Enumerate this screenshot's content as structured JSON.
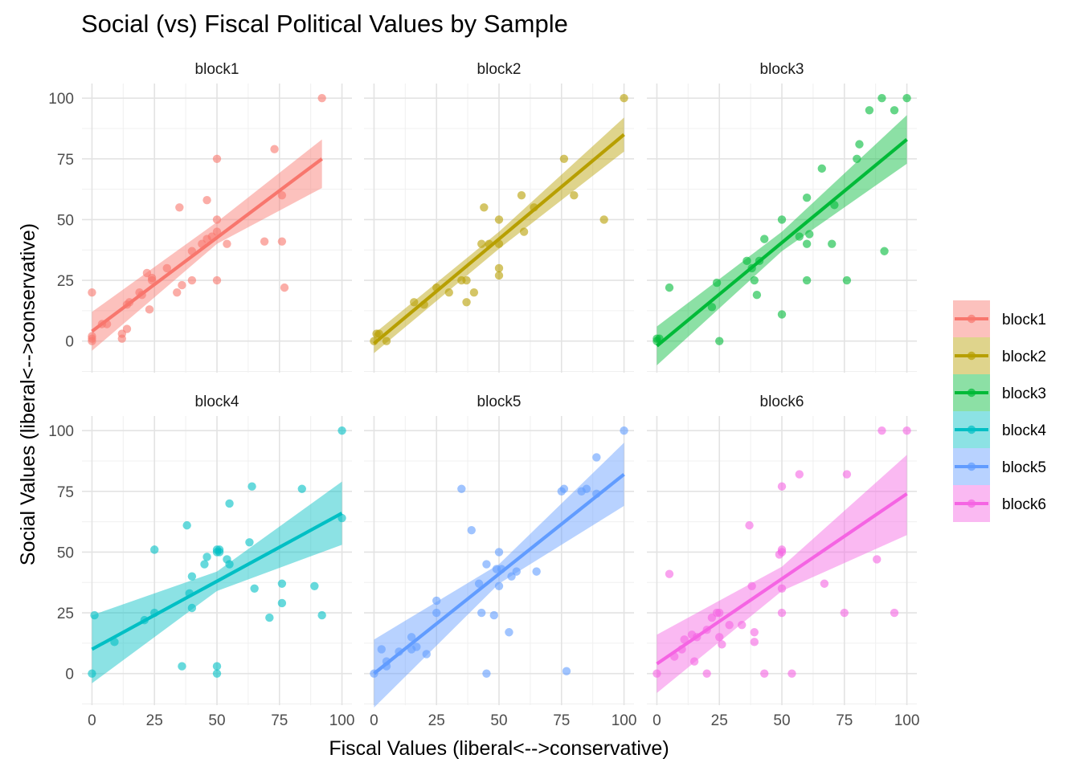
{
  "chart_data": {
    "type": "scatter",
    "title": "Social (vs) Fiscal Political Values by Sample",
    "xlabel": "Fiscal Values (liberal<-->conservative)",
    "ylabel": "Social Values (liberal<-->conservative)",
    "xlim": [
      -4,
      104
    ],
    "ylim": [
      -13,
      106
    ],
    "xticks": [
      0,
      25,
      50,
      75,
      100
    ],
    "yticks": [
      0,
      25,
      50,
      75,
      100
    ],
    "grid": true,
    "legend_position": "right",
    "overlay": "linear fit with confidence band",
    "facets": [
      {
        "name": "block1",
        "color": "#F8766D",
        "fit": {
          "x": [
            0,
            92
          ],
          "y": [
            4,
            75
          ]
        },
        "band": {
          "x": [
            0,
            50,
            92
          ],
          "upper": [
            12,
            49,
            83
          ],
          "lower": [
            -4,
            40,
            63
          ]
        },
        "points": [
          [
            0,
            20
          ],
          [
            0,
            2
          ],
          [
            0,
            1
          ],
          [
            0,
            0
          ],
          [
            4,
            7
          ],
          [
            6,
            7
          ],
          [
            12,
            3
          ],
          [
            12,
            1
          ],
          [
            14,
            5
          ],
          [
            14,
            15
          ],
          [
            15,
            16
          ],
          [
            19,
            20
          ],
          [
            20,
            19
          ],
          [
            22,
            28
          ],
          [
            23,
            13
          ],
          [
            24,
            26
          ],
          [
            24,
            25
          ],
          [
            30,
            30
          ],
          [
            34,
            20
          ],
          [
            35,
            55
          ],
          [
            36,
            23
          ],
          [
            40,
            37
          ],
          [
            40,
            25
          ],
          [
            44,
            40
          ],
          [
            46,
            58
          ],
          [
            46,
            42
          ],
          [
            48,
            43
          ],
          [
            50,
            50
          ],
          [
            50,
            45
          ],
          [
            50,
            75
          ],
          [
            50,
            25
          ],
          [
            54,
            40
          ],
          [
            69,
            41
          ],
          [
            73,
            79
          ],
          [
            76,
            60
          ],
          [
            76,
            41
          ],
          [
            77,
            22
          ],
          [
            92,
            100
          ]
        ]
      },
      {
        "name": "block2",
        "color": "#B79F00",
        "fit": {
          "x": [
            0,
            100
          ],
          "y": [
            -1,
            85
          ]
        },
        "band": {
          "x": [
            0,
            50,
            100
          ],
          "upper": [
            3,
            45,
            92
          ],
          "lower": [
            -5,
            38,
            78
          ]
        },
        "points": [
          [
            0,
            0
          ],
          [
            1,
            3
          ],
          [
            2,
            3
          ],
          [
            5,
            0
          ],
          [
            16,
            16
          ],
          [
            20,
            15
          ],
          [
            25,
            22
          ],
          [
            30,
            20
          ],
          [
            35,
            25
          ],
          [
            37,
            25
          ],
          [
            37,
            16
          ],
          [
            40,
            20
          ],
          [
            43,
            40
          ],
          [
            44,
            55
          ],
          [
            46,
            40
          ],
          [
            50,
            40
          ],
          [
            50,
            50
          ],
          [
            50,
            30
          ],
          [
            50,
            27
          ],
          [
            59,
            60
          ],
          [
            60,
            45
          ],
          [
            64,
            55
          ],
          [
            76,
            75
          ],
          [
            80,
            60
          ],
          [
            92,
            50
          ],
          [
            100,
            100
          ]
        ]
      },
      {
        "name": "block3",
        "color": "#00BA38",
        "fit": {
          "x": [
            0,
            100
          ],
          "y": [
            -2,
            83
          ]
        },
        "band": {
          "x": [
            0,
            50,
            100
          ],
          "upper": [
            6,
            45,
            93
          ],
          "lower": [
            -10,
            37,
            73
          ]
        },
        "points": [
          [
            0,
            0
          ],
          [
            0,
            1
          ],
          [
            1,
            1
          ],
          [
            5,
            22
          ],
          [
            22,
            14
          ],
          [
            24,
            24
          ],
          [
            25,
            0
          ],
          [
            36,
            33
          ],
          [
            38,
            30
          ],
          [
            39,
            25
          ],
          [
            40,
            19
          ],
          [
            41,
            33
          ],
          [
            43,
            42
          ],
          [
            50,
            50
          ],
          [
            50,
            11
          ],
          [
            57,
            43
          ],
          [
            60,
            25
          ],
          [
            60,
            40
          ],
          [
            60,
            59
          ],
          [
            61,
            44
          ],
          [
            66,
            71
          ],
          [
            70,
            40
          ],
          [
            71,
            56
          ],
          [
            76,
            25
          ],
          [
            80,
            75
          ],
          [
            81,
            81
          ],
          [
            85,
            95
          ],
          [
            90,
            100
          ],
          [
            91,
            37
          ],
          [
            95,
            95
          ],
          [
            100,
            100
          ]
        ]
      },
      {
        "name": "block4",
        "color": "#00BFC4",
        "fit": {
          "x": [
            0,
            100
          ],
          "y": [
            10,
            66
          ]
        },
        "band": {
          "x": [
            0,
            50,
            100
          ],
          "upper": [
            24,
            42,
            79
          ],
          "lower": [
            -4,
            34,
            53
          ]
        },
        "points": [
          [
            0,
            0
          ],
          [
            1,
            24
          ],
          [
            9,
            13
          ],
          [
            21,
            22
          ],
          [
            25,
            25
          ],
          [
            25,
            51
          ],
          [
            36,
            3
          ],
          [
            38,
            61
          ],
          [
            39,
            33
          ],
          [
            40,
            27
          ],
          [
            40,
            40
          ],
          [
            45,
            45
          ],
          [
            46,
            48
          ],
          [
            50,
            0
          ],
          [
            50,
            3
          ],
          [
            50,
            50
          ],
          [
            50,
            51
          ],
          [
            51,
            51
          ],
          [
            51,
            50
          ],
          [
            54,
            47
          ],
          [
            55,
            45
          ],
          [
            55,
            70
          ],
          [
            63,
            54
          ],
          [
            64,
            77
          ],
          [
            65,
            35
          ],
          [
            71,
            23
          ],
          [
            76,
            29
          ],
          [
            76,
            37
          ],
          [
            84,
            76
          ],
          [
            89,
            36
          ],
          [
            92,
            24
          ],
          [
            100,
            64
          ],
          [
            100,
            100
          ]
        ]
      },
      {
        "name": "block5",
        "color": "#619CFF",
        "fit": {
          "x": [
            0,
            100
          ],
          "y": [
            0,
            82
          ]
        },
        "band": {
          "x": [
            0,
            50,
            100
          ],
          "upper": [
            14,
            45,
            95
          ],
          "lower": [
            -14,
            37,
            69
          ]
        },
        "points": [
          [
            0,
            0
          ],
          [
            3,
            10
          ],
          [
            5,
            5
          ],
          [
            5,
            3
          ],
          [
            10,
            9
          ],
          [
            15,
            10
          ],
          [
            15,
            15
          ],
          [
            17,
            11
          ],
          [
            21,
            8
          ],
          [
            25,
            25
          ],
          [
            25,
            30
          ],
          [
            35,
            76
          ],
          [
            39,
            59
          ],
          [
            42,
            37
          ],
          [
            43,
            25
          ],
          [
            45,
            0
          ],
          [
            45,
            45
          ],
          [
            48,
            24
          ],
          [
            49,
            43
          ],
          [
            50,
            50
          ],
          [
            50,
            36
          ],
          [
            51,
            43
          ],
          [
            54,
            17
          ],
          [
            55,
            40
          ],
          [
            57,
            42
          ],
          [
            65,
            42
          ],
          [
            75,
            75
          ],
          [
            76,
            76
          ],
          [
            77,
            1
          ],
          [
            83,
            75
          ],
          [
            85,
            76
          ],
          [
            89,
            89
          ],
          [
            89,
            74
          ],
          [
            100,
            100
          ]
        ]
      },
      {
        "name": "block6",
        "color": "#F564E3",
        "fit": {
          "x": [
            0,
            100
          ],
          "y": [
            4,
            74
          ]
        },
        "band": {
          "x": [
            0,
            50,
            100
          ],
          "upper": [
            16,
            44,
            90
          ],
          "lower": [
            -8,
            34,
            57
          ]
        },
        "points": [
          [
            0,
            0
          ],
          [
            5,
            41
          ],
          [
            7,
            7
          ],
          [
            10,
            10
          ],
          [
            11,
            14
          ],
          [
            14,
            16
          ],
          [
            15,
            5
          ],
          [
            16,
            15
          ],
          [
            20,
            18
          ],
          [
            20,
            0
          ],
          [
            22,
            23
          ],
          [
            24,
            25
          ],
          [
            25,
            25
          ],
          [
            25,
            15
          ],
          [
            26,
            12
          ],
          [
            29,
            20
          ],
          [
            34,
            20
          ],
          [
            37,
            61
          ],
          [
            38,
            36
          ],
          [
            39,
            17
          ],
          [
            39,
            13
          ],
          [
            43,
            0
          ],
          [
            49,
            49
          ],
          [
            50,
            50
          ],
          [
            50,
            51
          ],
          [
            50,
            77
          ],
          [
            50,
            25
          ],
          [
            50,
            35
          ],
          [
            54,
            0
          ],
          [
            57,
            82
          ],
          [
            67,
            37
          ],
          [
            75,
            25
          ],
          [
            76,
            82
          ],
          [
            88,
            47
          ],
          [
            90,
            100
          ],
          [
            95,
            25
          ],
          [
            100,
            100
          ]
        ]
      }
    ]
  }
}
